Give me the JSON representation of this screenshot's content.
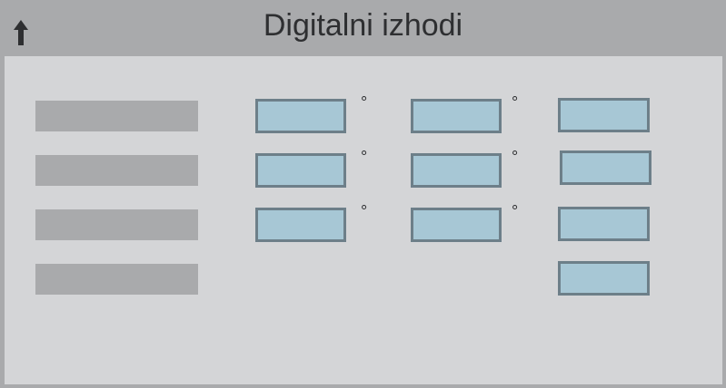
{
  "header": {
    "title": "Digitalni izhodi",
    "back_icon": "arrow-up-icon"
  },
  "units": {
    "degree_symbol": "°"
  },
  "colors": {
    "background": "#a9aaac",
    "panel": "#d4d5d7",
    "input_fill": "#a7c7d5",
    "input_border": "#6d7f89",
    "text": "#2e2f31"
  }
}
